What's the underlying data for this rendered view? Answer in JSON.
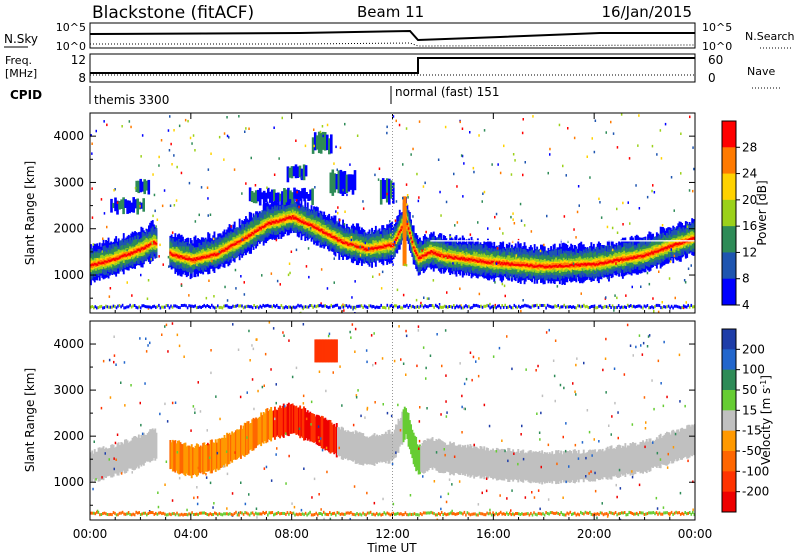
{
  "header": {
    "station": "Blackstone (fitACF)",
    "beam": "Beam 11",
    "date": "16/Jan/2015"
  },
  "noise_panel": {
    "left_label": "N.Sky",
    "right_label": "N.Search",
    "ticks": [
      "10^5",
      "10^0"
    ]
  },
  "freq_panel": {
    "label_top": "Freq.",
    "label_bottom": "[MHz]",
    "ticks_left": [
      "12",
      "8"
    ],
    "ticks_right": [
      "60",
      "0"
    ],
    "right_label": "Nave"
  },
  "cpid": {
    "label": "CPID",
    "modes": [
      {
        "name": "themis 3300",
        "start_hour": 0
      },
      {
        "name": "normal (fast) 151",
        "start_hour": 12.8
      }
    ]
  },
  "chart_data": [
    {
      "type": "heatmap",
      "title": "",
      "ylabel": "Slant Range [km]",
      "ylim": [
        180,
        4500
      ],
      "yticks": [
        1000,
        2000,
        3000,
        4000
      ],
      "xlim": [
        0,
        24
      ],
      "colorbar": {
        "label": "Power [dB]",
        "ticks": [
          "28",
          "24",
          "20",
          "16",
          "12",
          "8",
          "4"
        ],
        "colors": [
          "#ff0000",
          "#ff7a00",
          "#ffd200",
          "#9bd11a",
          "#2e8b57",
          "#1e55b0",
          "#0000ff"
        ]
      },
      "features": [
        {
          "t0": 0.0,
          "t1": 2.5,
          "range_km": [
            1000,
            2600
          ],
          "max_db": 28
        },
        {
          "t0": 3.5,
          "t1": 9.8,
          "range_km": [
            1100,
            3000
          ],
          "max_db": 24
        },
        {
          "t0": 9.0,
          "t1": 12.0,
          "range_km": [
            1400,
            2600
          ],
          "max_db": 28
        },
        {
          "t0": 12.4,
          "t1": 13.2,
          "range_km": [
            1200,
            2600
          ],
          "max_db": 28
        },
        {
          "t0": 13.2,
          "t1": 24.0,
          "range_km": [
            1100,
            2400
          ],
          "max_db": 28
        }
      ]
    },
    {
      "type": "heatmap",
      "title": "",
      "ylabel": "Slant Range [km]",
      "ylim": [
        180,
        4500
      ],
      "yticks": [
        1000,
        2000,
        3000,
        4000
      ],
      "xlim": [
        0,
        24
      ],
      "xticks": [
        "00:00",
        "04:00",
        "08:00",
        "12:00",
        "16:00",
        "20:00",
        "00:00"
      ],
      "xlabel": "Time UT",
      "colorbar": {
        "label": "Velocity [m s^-1]",
        "ticks": [
          "200",
          "100",
          "50",
          "15",
          "-15",
          "-50",
          "-100",
          "-200"
        ],
        "colors": [
          "#1e3da8",
          "#2266cc",
          "#2e8b57",
          "#66cc33",
          "#c0c0c0",
          "#ff9900",
          "#ff6600",
          "#ff3300",
          "#ee0000"
        ]
      },
      "features": [
        {
          "t0": 0.0,
          "t1": 2.5,
          "range_km": [
            1300,
            2400
          ],
          "velocity": "ground scatter"
        },
        {
          "t0": 3.0,
          "t1": 7.5,
          "range_km": [
            1200,
            2200
          ],
          "velocity": "-50"
        },
        {
          "t0": 7.0,
          "t1": 9.8,
          "range_km": [
            1900,
            2800
          ],
          "velocity": "-200"
        },
        {
          "t0": 12.5,
          "t1": 13.2,
          "range_km": [
            1000,
            2600
          ],
          "velocity": "50"
        },
        {
          "t0": 13.2,
          "t1": 24.0,
          "range_km": [
            1300,
            2200
          ],
          "velocity": "ground scatter"
        }
      ]
    }
  ]
}
